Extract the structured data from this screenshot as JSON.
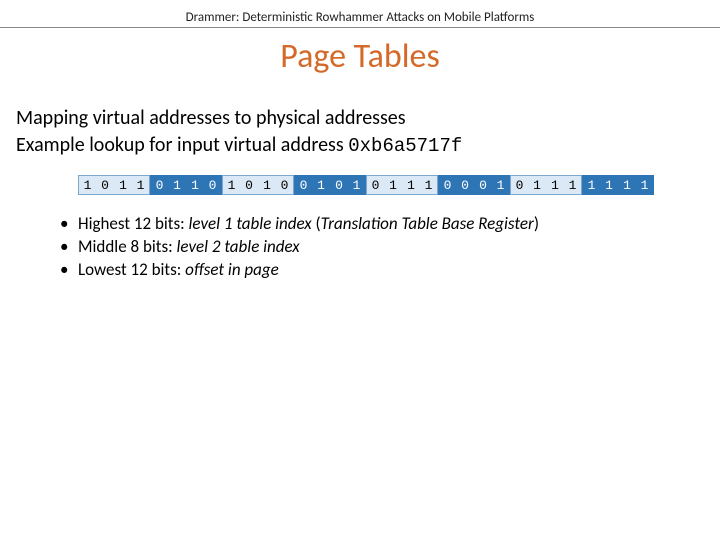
{
  "header": {
    "subtitle": "Drammer: Deterministic Rowhammer Attacks on Mobile Platforms"
  },
  "title": {
    "text": "Page Tables",
    "color": "#d46a2a"
  },
  "body": {
    "line1": "Mapping virtual addresses to physical addresses",
    "line2_prefix": "Example lookup for input virtual address ",
    "line2_code": "0xb6a5717f"
  },
  "bits": {
    "colors": {
      "a_bg": "#dbe9f6",
      "a_border": "#7fa6cc",
      "b_bg": "#2e75b6",
      "b_fg": "#ffffff"
    },
    "groups": [
      {
        "style": "a",
        "bits": [
          "1",
          "0",
          "1",
          "1"
        ]
      },
      {
        "style": "b",
        "bits": [
          "0",
          "1",
          "1",
          "0"
        ]
      },
      {
        "style": "a",
        "bits": [
          "1",
          "0",
          "1",
          "0"
        ]
      },
      {
        "style": "b",
        "bits": [
          "0",
          "1",
          "0",
          "1"
        ]
      },
      {
        "style": "a",
        "bits": [
          "0",
          "1",
          "1",
          "1"
        ]
      },
      {
        "style": "b",
        "bits": [
          "0",
          "0",
          "0",
          "1"
        ]
      },
      {
        "style": "a",
        "bits": [
          "0",
          "1",
          "1",
          "1"
        ]
      },
      {
        "style": "b",
        "bits": [
          "1",
          "1",
          "1",
          "1"
        ]
      }
    ]
  },
  "bullets": {
    "items": [
      {
        "pre": "Highest 12 bits: ",
        "em": "level 1 table index",
        "post_open": " (",
        "post_em": "Translation Table Base Register",
        "post_close": ")"
      },
      {
        "pre": "Middle 8 bits: ",
        "em": "level 2 table index",
        "post_open": "",
        "post_em": "",
        "post_close": ""
      },
      {
        "pre": "Lowest 12 bits: ",
        "em": "offset in page",
        "post_open": "",
        "post_em": "",
        "post_close": ""
      }
    ]
  }
}
